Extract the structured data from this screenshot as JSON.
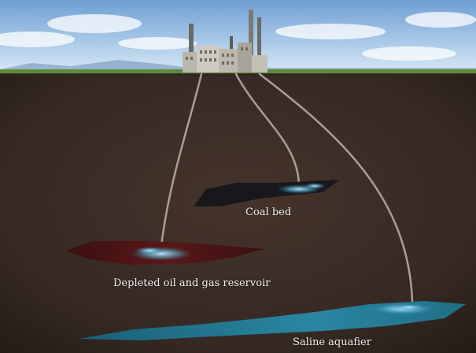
{
  "labels": {
    "coal_bed": "Coal bed",
    "depleted_reservoir": "Depleted oil and gas reservoir",
    "saline_aquifer": "Saline aquafier"
  },
  "icons": {
    "plant": "industrial-plant-icon"
  },
  "colors": {
    "sky_top": "#6f9fd4",
    "sky_bottom": "#cfe3f4",
    "grass": "#5f8a3a",
    "soil": "#3a2c26",
    "pipe": "#a89f95",
    "coal_bed": "#18181c",
    "oil_reservoir": "#4a1414",
    "saline_aquifer": "#1f6f86",
    "co2_glow": "#7ad0ee"
  }
}
